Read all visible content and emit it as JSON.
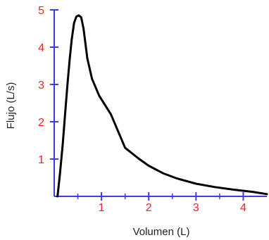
{
  "chart_data": {
    "type": "line",
    "title": "",
    "xlabel": "Volumen (L)",
    "ylabel": "Flujo (L/s)",
    "xlim": [
      0,
      4.5
    ],
    "ylim": [
      0,
      5
    ],
    "x_ticks": [
      1,
      2,
      3,
      4
    ],
    "x_tick_labels": [
      "1",
      "2",
      "3",
      "4"
    ],
    "y_ticks": [
      1,
      2,
      3,
      4,
      5
    ],
    "y_tick_labels": [
      "1",
      "2",
      "3",
      "4",
      "5"
    ],
    "grid": false,
    "colors": {
      "axis": "#3b3bf2",
      "tick_label": "#e8262c",
      "curve": "#000000",
      "axis_title": "#222222"
    },
    "series": [
      {
        "x": [
          0.07,
          0.12,
          0.18,
          0.23,
          0.28,
          0.33,
          0.37,
          0.42,
          0.47,
          0.52,
          0.57,
          0.62,
          0.7,
          0.8,
          0.95,
          1.2,
          1.5,
          1.8,
          2.0,
          2.3,
          2.6,
          3.0,
          3.4,
          3.8,
          4.2,
          4.5
        ],
        "y": [
          0.0,
          0.6,
          1.4,
          2.2,
          3.0,
          3.7,
          4.2,
          4.65,
          4.82,
          4.85,
          4.8,
          4.5,
          3.7,
          3.15,
          2.7,
          2.2,
          1.3,
          1.0,
          0.82,
          0.62,
          0.48,
          0.34,
          0.25,
          0.18,
          0.12,
          0.06
        ]
      }
    ]
  }
}
